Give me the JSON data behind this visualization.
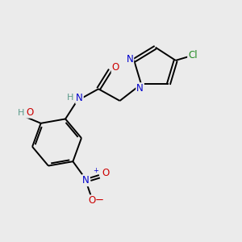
{
  "background_color": "#ebebeb",
  "bond_color": "#000000",
  "N_color": "#0000cc",
  "O_color": "#cc0000",
  "Cl_color": "#228B22",
  "H_color": "#5a9a8a",
  "figsize": [
    3.0,
    3.0
  ],
  "dpi": 100,
  "xlim": [
    0,
    10
  ],
  "ylim": [
    0,
    10
  ],
  "lw": 1.4,
  "fs": 8.5
}
